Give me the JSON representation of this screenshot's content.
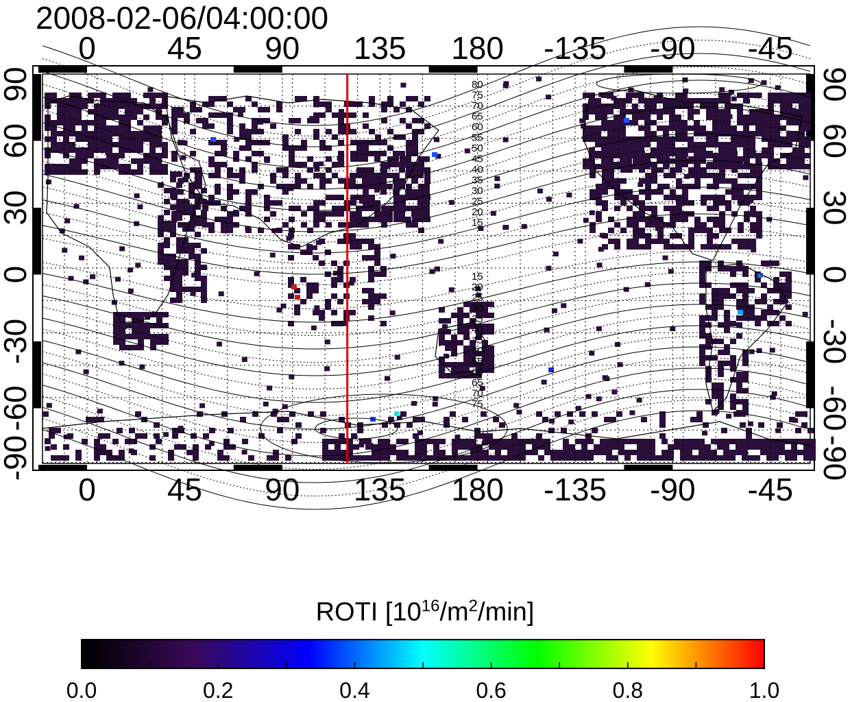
{
  "title": "2008-02-06/04:00:00",
  "map": {
    "lon_ticks_top": [
      "0",
      "45",
      "90",
      "135",
      "180",
      "-135",
      "-90",
      "-45"
    ],
    "lon_ticks_bottom": [
      "0",
      "45",
      "90",
      "135",
      "180",
      "-135",
      "-90",
      "-45"
    ],
    "lat_ticks_left": [
      "90",
      "60",
      "30",
      "0",
      "-30",
      "-60",
      "-90"
    ],
    "lat_ticks_right": [
      "90",
      "60",
      "30",
      "0",
      "-30",
      "-60",
      "-90"
    ],
    "contour_labels_north": [
      "80",
      "75",
      "70",
      "65",
      "60",
      "55",
      "50",
      "45",
      "40",
      "35",
      "30",
      "25",
      "20",
      "15"
    ],
    "contour_labels_south": [
      "15",
      "20",
      "25",
      "30",
      "35",
      "40",
      "45",
      "50",
      "55",
      "60",
      "65",
      "70",
      "75"
    ],
    "marker_longitude": 120,
    "colors": {
      "marker_line": "#e00000",
      "data_cells": "#2a0f3a",
      "grid": "#000000"
    }
  },
  "colorbar": {
    "title_prefix": "ROTI  [10",
    "title_sup1": "16",
    "title_mid": "/m",
    "title_sup2": "2",
    "title_suffix": "/min]",
    "ticks": [
      "0.0",
      "0.2",
      "0.4",
      "0.6",
      "0.8",
      "1.0"
    ],
    "range": [
      0.0,
      1.0
    ],
    "colors": [
      "#000000",
      "#3a0a5a",
      "#0000ff",
      "#00ffff",
      "#00ff00",
      "#ffff00",
      "#ff0000"
    ]
  }
}
